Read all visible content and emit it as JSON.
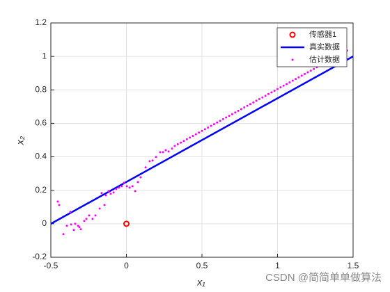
{
  "chart_data": {
    "type": "scatter",
    "xlabel": "x₁",
    "ylabel": "x₂",
    "xlim": [
      -0.5,
      1.5
    ],
    "ylim": [
      -0.2,
      1.2
    ],
    "xticks": [
      -0.5,
      0,
      0.5,
      1,
      1.5
    ],
    "yticks": [
      -0.2,
      0,
      0.2,
      0.4,
      0.6,
      0.8,
      1,
      1.2
    ],
    "grid": true,
    "legend_location": "northeast",
    "series": [
      {
        "name": "传感器1",
        "color": "#ff0000",
        "mode": "circle",
        "x": [
          0
        ],
        "values": [
          0
        ]
      },
      {
        "name": "真实数据",
        "color": "#0000ff",
        "mode": "line",
        "x": [
          -0.5,
          1.5
        ],
        "values": [
          0,
          1
        ]
      },
      {
        "name": "估计数据",
        "color": "#ff00ff",
        "mode": "dot",
        "x": [
          -0.454,
          -0.445,
          -0.417,
          -0.394,
          -0.371,
          -0.366,
          -0.348,
          -0.339,
          -0.32,
          -0.311,
          -0.302,
          -0.279,
          -0.265,
          -0.247,
          -0.224,
          -0.205,
          -0.177,
          -0.164,
          -0.145,
          -0.136,
          -0.118,
          -0.104,
          -0.085,
          -0.067,
          -0.049,
          -0.03,
          -0.016,
          0.003,
          0.021,
          0.04,
          0.058,
          0.076,
          0.094,
          0.127,
          0.154,
          0.173,
          0.196,
          0.223,
          0.242,
          0.26,
          0.279,
          0.302,
          0.32,
          0.34,
          0.36,
          0.38,
          0.4,
          0.42,
          0.44,
          0.46,
          0.48,
          0.5,
          0.52,
          0.54,
          0.56,
          0.58,
          0.6,
          0.62,
          0.64,
          0.66,
          0.68,
          0.7,
          0.72,
          0.74,
          0.76,
          0.78,
          0.8,
          0.82,
          0.84,
          0.86,
          0.88,
          0.9,
          0.92,
          0.94,
          0.96,
          0.98,
          1,
          1.02,
          1.04,
          1.06,
          1.08,
          1.1,
          1.12,
          1.14,
          1.16,
          1.18,
          1.2,
          1.22,
          1.24,
          1.26,
          1.28,
          1.3,
          1.32,
          1.34,
          1.36,
          1.38,
          1.4,
          1.42,
          1.44,
          1.46
        ],
        "values": [
          0.133,
          0.112,
          -0.062,
          -0.012,
          0.071,
          -0.004,
          -0.037,
          0,
          -0.012,
          -0.02,
          -0.033,
          0.017,
          0.029,
          0.05,
          0.029,
          0.05,
          0.091,
          0.183,
          0.112,
          0.17,
          0.195,
          0.179,
          0.187,
          0.208,
          0.216,
          0.224,
          0.245,
          0.224,
          0.216,
          0.224,
          0.195,
          0.249,
          0.278,
          0.337,
          0.374,
          0.378,
          0.399,
          0.428,
          0.428,
          0.44,
          0.432,
          0.449,
          0.465,
          0.475,
          0.485,
          0.495,
          0.505,
          0.515,
          0.525,
          0.535,
          0.545,
          0.555,
          0.565,
          0.575,
          0.585,
          0.595,
          0.605,
          0.615,
          0.625,
          0.635,
          0.645,
          0.655,
          0.665,
          0.675,
          0.685,
          0.695,
          0.705,
          0.715,
          0.725,
          0.735,
          0.745,
          0.755,
          0.765,
          0.775,
          0.785,
          0.795,
          0.805,
          0.815,
          0.825,
          0.835,
          0.845,
          0.855,
          0.865,
          0.875,
          0.885,
          0.895,
          0.905,
          0.915,
          0.925,
          0.935,
          0.945,
          0.955,
          0.965,
          0.975,
          0.985,
          0.995,
          1.005,
          1.015,
          1.025,
          1.035
        ]
      }
    ],
    "watermark": "CSDN @简简单单做算法"
  }
}
